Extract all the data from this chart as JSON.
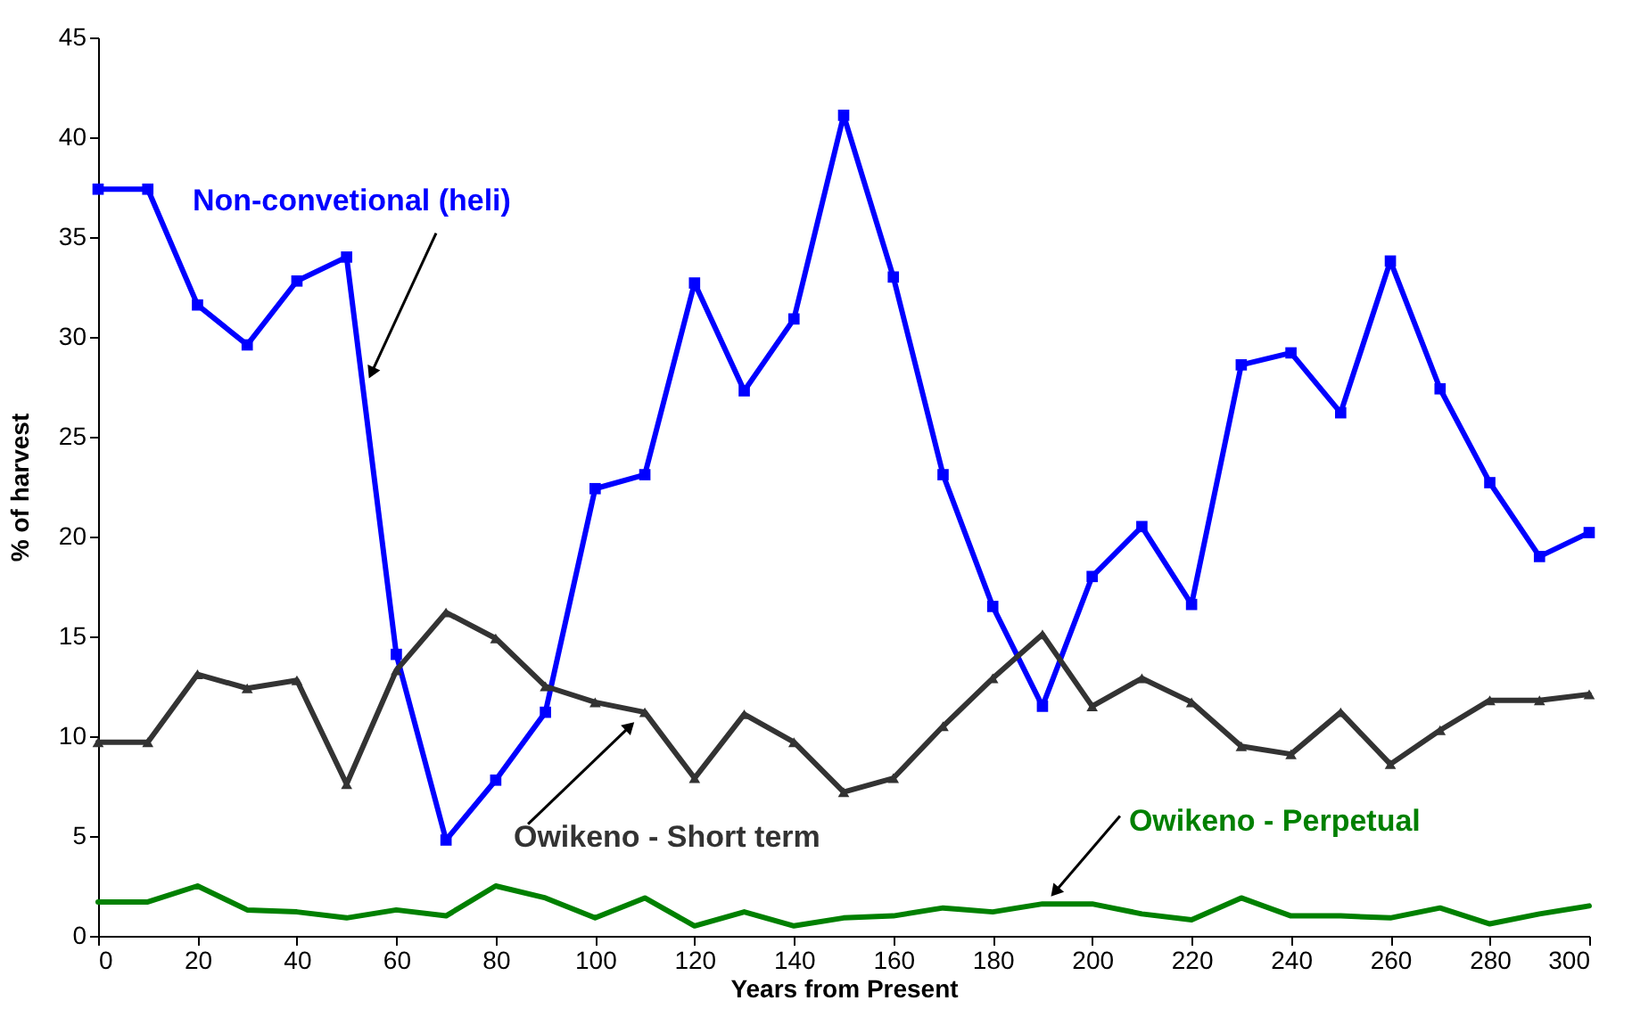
{
  "chart_data": {
    "type": "line",
    "xlabel": "Years from Present",
    "ylabel": "% of harvest",
    "x": [
      0,
      10,
      20,
      30,
      40,
      50,
      60,
      70,
      80,
      90,
      100,
      110,
      120,
      130,
      140,
      150,
      160,
      170,
      180,
      190,
      200,
      210,
      220,
      230,
      240,
      250,
      260,
      270,
      280,
      290,
      300
    ],
    "series": [
      {
        "name": "Non-convetional (heli)",
        "color": "#0000ff",
        "marker": "square",
        "values": [
          37.4,
          37.4,
          31.6,
          29.6,
          32.8,
          34.0,
          14.1,
          4.8,
          7.8,
          11.2,
          22.4,
          23.1,
          32.7,
          27.3,
          30.9,
          41.1,
          33.0,
          23.1,
          16.5,
          11.5,
          18.0,
          20.5,
          16.6,
          28.6,
          29.2,
          26.2,
          33.8,
          27.4,
          22.7,
          19.0,
          20.2
        ]
      },
      {
        "name": "Owikeno - Short term",
        "color": "#333333",
        "marker": "triangle",
        "values": [
          9.7,
          9.7,
          13.1,
          12.4,
          12.8,
          7.6,
          13.3,
          16.2,
          14.9,
          12.5,
          11.7,
          11.2,
          7.9,
          11.1,
          9.7,
          7.2,
          7.9,
          10.5,
          12.9,
          15.1,
          11.5,
          12.9,
          11.7,
          9.5,
          9.1,
          11.2,
          8.6,
          10.3,
          11.8,
          11.8,
          12.1
        ]
      },
      {
        "name": "Owikeno - Perpetual",
        "color": "#008000",
        "marker": "none",
        "values": [
          1.7,
          1.7,
          2.5,
          1.3,
          1.2,
          0.9,
          1.3,
          1.0,
          2.5,
          1.9,
          0.9,
          1.9,
          0.5,
          1.2,
          0.5,
          0.9,
          1.0,
          1.4,
          1.2,
          1.6,
          1.6,
          1.1,
          0.8,
          1.9,
          1.0,
          1.0,
          0.9,
          1.4,
          0.6,
          1.1,
          1.5
        ]
      }
    ],
    "xlim": [
      0,
      300
    ],
    "xticks": [
      0,
      20,
      40,
      60,
      80,
      100,
      120,
      140,
      160,
      180,
      200,
      220,
      240,
      260,
      280,
      300
    ],
    "ylim": [
      0,
      45
    ],
    "yticks": [
      0,
      5,
      10,
      15,
      20,
      25,
      30,
      35,
      40,
      45
    ],
    "grid": false,
    "legend": false
  }
}
